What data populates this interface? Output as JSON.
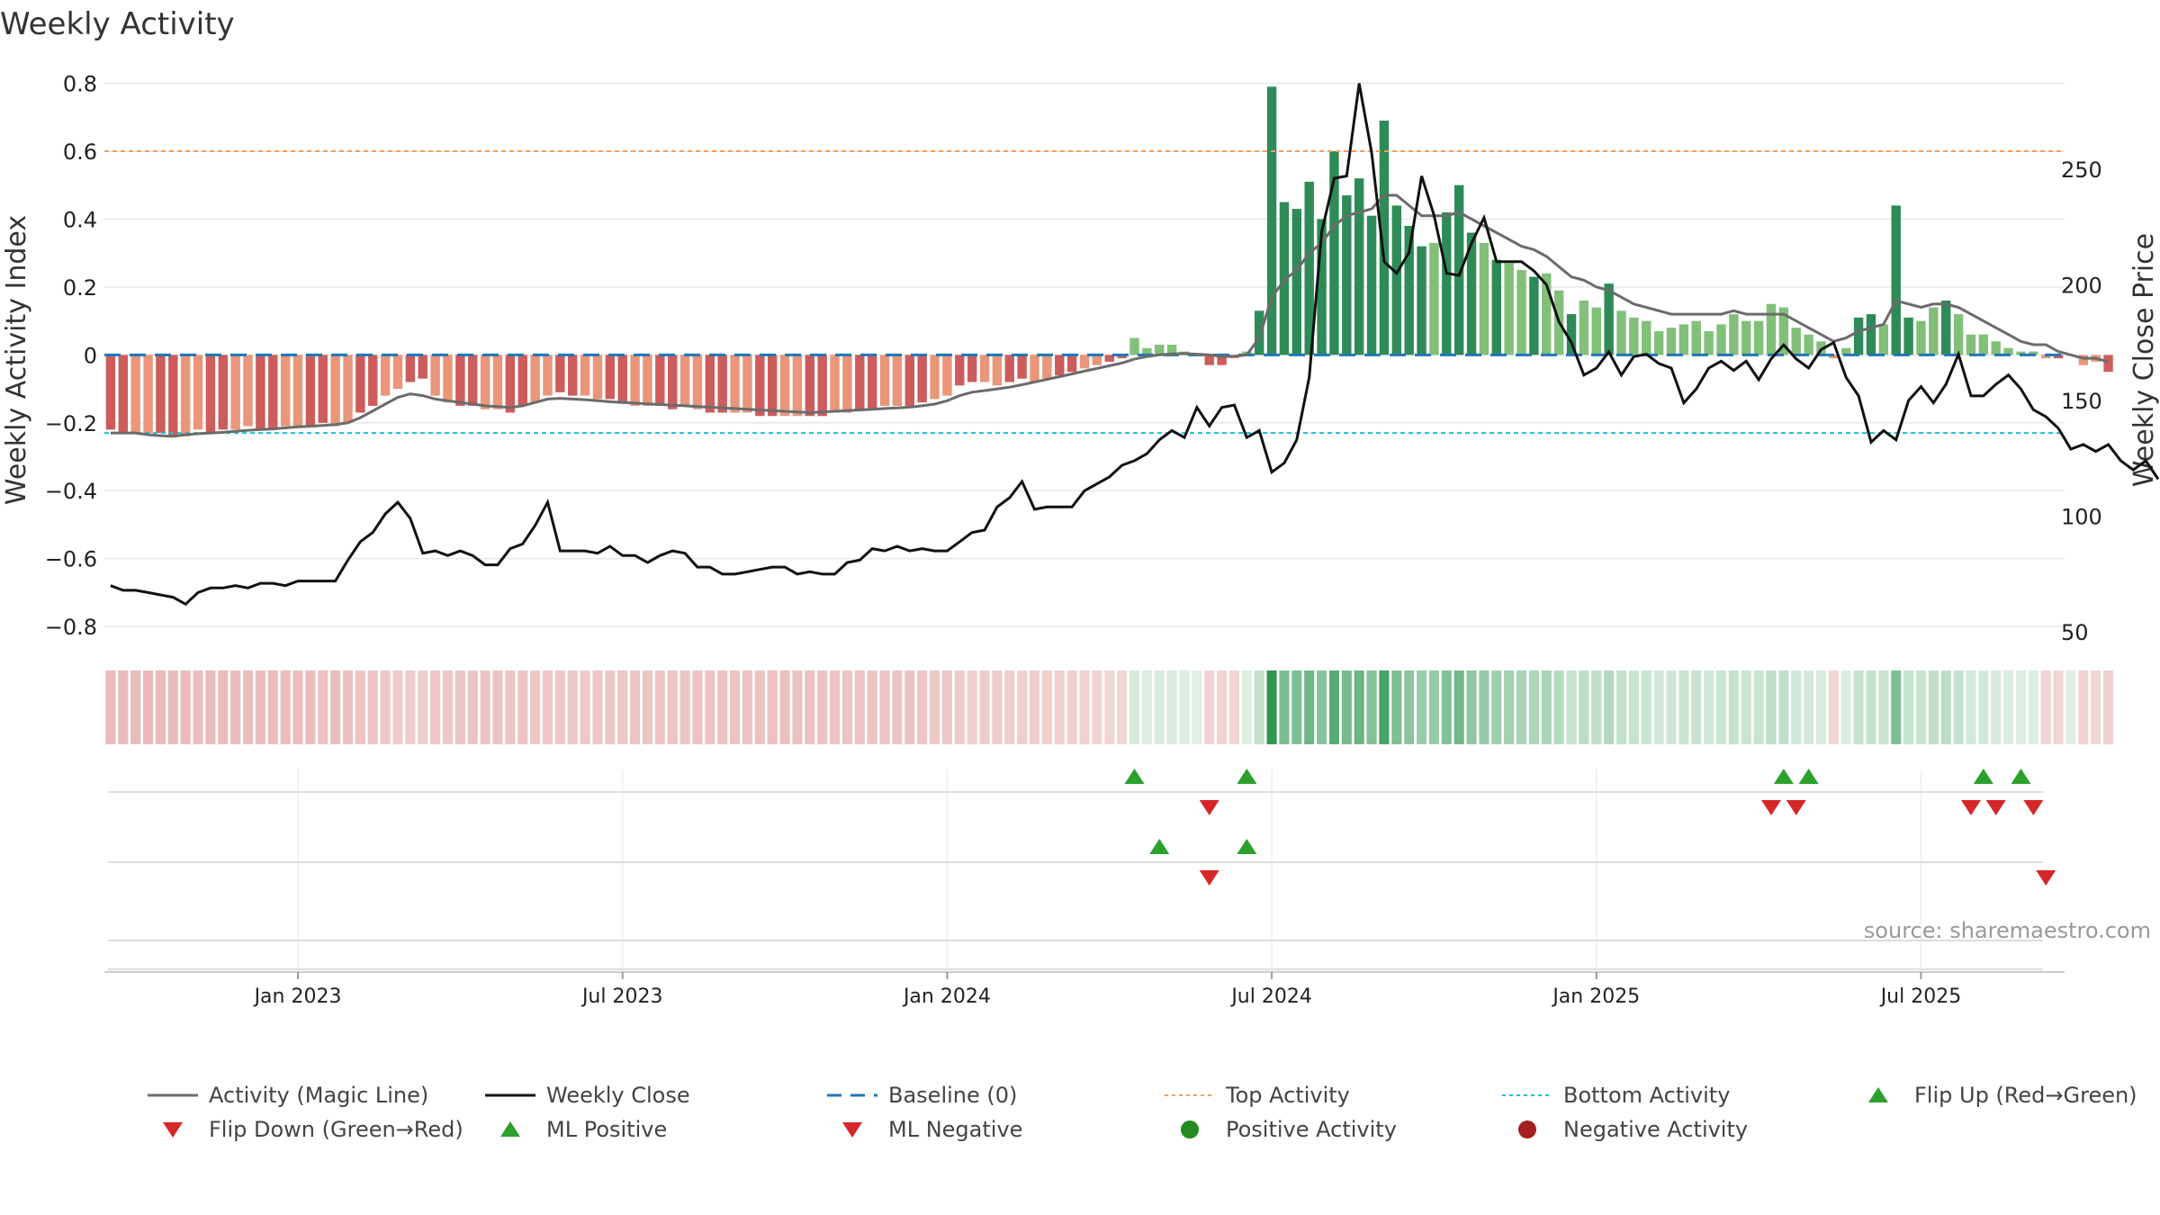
{
  "chart_data": {
    "type": "bar+line",
    "title": "Weekly Activity",
    "ylabel_left": "Weekly Activity Index",
    "ylabel_right": "Weekly Close Price",
    "source": "source: sharemaestro.com",
    "left_ylim": [
      -0.85,
      0.82
    ],
    "right_ylim": [
      45,
      290
    ],
    "left_ticks": [
      -0.8,
      -0.6,
      -0.4,
      -0.2,
      0,
      0.2,
      0.4,
      0.6,
      0.8
    ],
    "left_tick_labels": [
      "−0.8",
      "−0.6",
      "−0.4",
      "−0.2",
      "0",
      "0.2",
      "0.4",
      "0.6",
      "0.8"
    ],
    "right_ticks": [
      50,
      100,
      150,
      200,
      250
    ],
    "right_tick_labels": [
      "50",
      "100",
      "150",
      "200",
      "250"
    ],
    "x_ticks": [
      {
        "label": "Jan 2023",
        "week": 15
      },
      {
        "label": "Jul 2023",
        "week": 41
      },
      {
        "label": "Jan 2024",
        "week": 67
      },
      {
        "label": "Jul 2024",
        "week": 93
      },
      {
        "label": "Jan 2025",
        "week": 119
      },
      {
        "label": "Jul 2025",
        "week": 145
      }
    ],
    "top_activity": 0.6,
    "bottom_activity": -0.23,
    "baseline": 0,
    "weeks": 157,
    "activity": [
      -0.22,
      -0.23,
      -0.23,
      -0.23,
      -0.23,
      -0.24,
      -0.24,
      -0.22,
      -0.23,
      -0.22,
      -0.22,
      -0.21,
      -0.22,
      -0.22,
      -0.21,
      -0.21,
      -0.21,
      -0.2,
      -0.21,
      -0.2,
      -0.17,
      -0.15,
      -0.12,
      -0.1,
      -0.08,
      -0.07,
      -0.12,
      -0.14,
      -0.15,
      -0.15,
      -0.16,
      -0.16,
      -0.17,
      -0.15,
      -0.14,
      -0.12,
      -0.11,
      -0.12,
      -0.12,
      -0.13,
      -0.13,
      -0.14,
      -0.15,
      -0.15,
      -0.15,
      -0.16,
      -0.15,
      -0.16,
      -0.17,
      -0.17,
      -0.17,
      -0.17,
      -0.18,
      -0.18,
      -0.18,
      -0.18,
      -0.18,
      -0.18,
      -0.17,
      -0.17,
      -0.16,
      -0.16,
      -0.15,
      -0.15,
      -0.15,
      -0.14,
      -0.13,
      -0.12,
      -0.09,
      -0.08,
      -0.08,
      -0.09,
      -0.08,
      -0.07,
      -0.08,
      -0.07,
      -0.06,
      -0.05,
      -0.04,
      -0.03,
      -0.02,
      -0.01,
      0.05,
      0.02,
      0.03,
      0.03,
      0.01,
      0.0,
      -0.03,
      -0.03,
      -0.01,
      0.01,
      0.13,
      0.79,
      0.45,
      0.43,
      0.51,
      0.4,
      0.6,
      0.47,
      0.52,
      0.41,
      0.69,
      0.44,
      0.38,
      0.32,
      0.33,
      0.42,
      0.5,
      0.36,
      0.33,
      0.28,
      0.27,
      0.25,
      0.23,
      0.24,
      0.19,
      0.12,
      0.16,
      0.14,
      0.21,
      0.13,
      0.11,
      0.1,
      0.07,
      0.08,
      0.09,
      0.1,
      0.07,
      0.09,
      0.12,
      0.1,
      0.1,
      0.15,
      0.14,
      0.08,
      0.06,
      0.04,
      -0.01,
      0.02,
      0.11,
      0.12,
      0.09,
      0.44,
      0.11,
      0.1,
      0.14,
      0.16,
      0.12,
      0.06,
      0.06,
      0.04,
      0.02,
      0.01,
      0.01,
      -0.01,
      -0.01,
      0.0,
      -0.03,
      -0.02,
      -0.05
    ],
    "magic_line": [
      -0.23,
      -0.23,
      -0.23,
      -0.235,
      -0.238,
      -0.24,
      -0.235,
      -0.232,
      -0.23,
      -0.228,
      -0.225,
      -0.222,
      -0.22,
      -0.218,
      -0.215,
      -0.212,
      -0.21,
      -0.208,
      -0.205,
      -0.2,
      -0.185,
      -0.165,
      -0.145,
      -0.125,
      -0.115,
      -0.12,
      -0.13,
      -0.135,
      -0.14,
      -0.145,
      -0.15,
      -0.152,
      -0.155,
      -0.15,
      -0.14,
      -0.13,
      -0.128,
      -0.13,
      -0.132,
      -0.135,
      -0.138,
      -0.14,
      -0.142,
      -0.144,
      -0.146,
      -0.148,
      -0.15,
      -0.152,
      -0.154,
      -0.156,
      -0.158,
      -0.16,
      -0.162,
      -0.164,
      -0.166,
      -0.168,
      -0.17,
      -0.168,
      -0.166,
      -0.164,
      -0.162,
      -0.16,
      -0.158,
      -0.156,
      -0.154,
      -0.15,
      -0.145,
      -0.135,
      -0.12,
      -0.11,
      -0.105,
      -0.1,
      -0.095,
      -0.088,
      -0.08,
      -0.072,
      -0.064,
      -0.056,
      -0.048,
      -0.04,
      -0.032,
      -0.024,
      -0.012,
      -0.005,
      0.0,
      0.003,
      0.004,
      0.002,
      0.0,
      -0.005,
      -0.004,
      0.0,
      0.05,
      0.17,
      0.22,
      0.25,
      0.3,
      0.33,
      0.38,
      0.41,
      0.42,
      0.43,
      0.47,
      0.47,
      0.44,
      0.41,
      0.41,
      0.41,
      0.42,
      0.4,
      0.38,
      0.36,
      0.34,
      0.32,
      0.31,
      0.29,
      0.26,
      0.23,
      0.22,
      0.2,
      0.19,
      0.17,
      0.15,
      0.14,
      0.13,
      0.12,
      0.12,
      0.12,
      0.12,
      0.12,
      0.13,
      0.12,
      0.12,
      0.12,
      0.12,
      0.1,
      0.08,
      0.06,
      0.04,
      0.05,
      0.07,
      0.08,
      0.09,
      0.16,
      0.15,
      0.14,
      0.15,
      0.15,
      0.14,
      0.12,
      0.1,
      0.08,
      0.06,
      0.04,
      0.03,
      0.03,
      0.01,
      0.0,
      -0.01,
      -0.01,
      -0.02
    ],
    "weekly_close": [
      70,
      68,
      68,
      67,
      66,
      65,
      62,
      67,
      69,
      69,
      70,
      69,
      71,
      71,
      70,
      72,
      72,
      72,
      72,
      81,
      89,
      93,
      101,
      106,
      99,
      84,
      85,
      83,
      85,
      83,
      79,
      79,
      86,
      88,
      96,
      106,
      85,
      85,
      85,
      84,
      87,
      83,
      83,
      80,
      83,
      85,
      84,
      78,
      78,
      75,
      75,
      76,
      77,
      78,
      78,
      75,
      76,
      75,
      75,
      80,
      81,
      86,
      85,
      87,
      85,
      86,
      85,
      85,
      89,
      93,
      94,
      104,
      108,
      115,
      103,
      104,
      104,
      104,
      111,
      114,
      117,
      122,
      124,
      127,
      133,
      137,
      134,
      147,
      139,
      147,
      148,
      134,
      137,
      119,
      123,
      133,
      160,
      223,
      246,
      247,
      287,
      257,
      210,
      205,
      214,
      247,
      230,
      205,
      204,
      218,
      229,
      210,
      210,
      210,
      206,
      200,
      184,
      175,
      161,
      164,
      171,
      161,
      169,
      170,
      166,
      164,
      149,
      155,
      164,
      167,
      163,
      167,
      159,
      168,
      174,
      168,
      164,
      172,
      175,
      160,
      152,
      132,
      137,
      133,
      150,
      156,
      149,
      157,
      170,
      152,
      152,
      157,
      161,
      155,
      146,
      143,
      138,
      129,
      131,
      128,
      131,
      124,
      120,
      124,
      116
    ],
    "flip_up_weeks": [
      82,
      91,
      134,
      136,
      150,
      153
    ],
    "flip_down_weeks": [
      88,
      133,
      135,
      149,
      151,
      154
    ],
    "ml_positive_weeks": [
      84,
      91
    ],
    "ml_negative_weeks": [
      88,
      155
    ],
    "colors": {
      "pos_dark": "#2e8b57",
      "pos_light": "#82c07a",
      "neg_dark": "#cd5c5c",
      "neg_light": "#e9967a",
      "magic": "#6b6b6b",
      "close": "#111111",
      "baseline": "#1f77b4",
      "top": "#f0a060",
      "bottom": "#17c0d8",
      "up_marker": "#2ca02c",
      "down_marker": "#d62728",
      "grid": "#e8e8e8"
    }
  },
  "legend": [
    {
      "key": "magic",
      "label": "Activity (Magic Line)",
      "icon": "solid-line"
    },
    {
      "key": "close",
      "label": "Weekly Close",
      "icon": "solid-line"
    },
    {
      "key": "baseline",
      "label": "Baseline (0)",
      "icon": "dashed-line"
    },
    {
      "key": "top",
      "label": "Top Activity",
      "icon": "dotted-line"
    },
    {
      "key": "bottom",
      "label": "Bottom Activity",
      "icon": "dotted-line"
    },
    {
      "key": "up_marker",
      "label": "Flip Up (Red→Green)",
      "icon": "triangle-up"
    },
    {
      "key": "down_marker",
      "label": "Flip Down (Green→Red)",
      "icon": "triangle-down"
    },
    {
      "key": "up_marker",
      "label": "ML Positive",
      "icon": "triangle-up"
    },
    {
      "key": "down_marker",
      "label": "ML Negative",
      "icon": "triangle-down"
    },
    {
      "key": "up_marker",
      "label": "Positive Activity",
      "icon": "circle"
    },
    {
      "key": "down_marker",
      "label": "Negative Activity",
      "icon": "circle"
    }
  ]
}
